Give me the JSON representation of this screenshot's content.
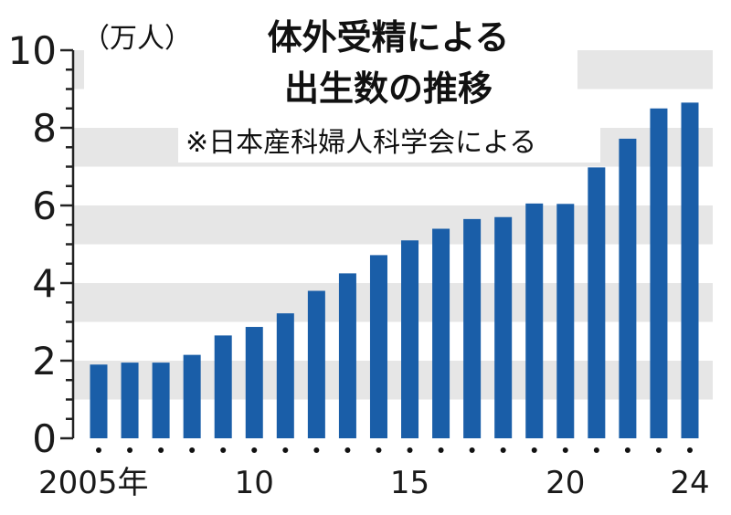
{
  "chart_data": {
    "type": "bar",
    "title": "体外受精による出生数の推移",
    "title_lines": [
      "体外受精による",
      "出生数の推移"
    ],
    "unit_label": "（万人）",
    "note": "※日本産科婦人科学会による",
    "ylim": [
      0,
      10
    ],
    "y_ticks": [
      "0",
      "2",
      "4",
      "6",
      "8",
      "10"
    ],
    "categories": [
      "2005",
      "2006",
      "2007",
      "2008",
      "2009",
      "2010",
      "2011",
      "2012",
      "2013",
      "2014",
      "2015",
      "2016",
      "2017",
      "2018",
      "2019",
      "2020",
      "2021",
      "2022",
      "2023",
      "2024"
    ],
    "values": [
      1.9,
      1.95,
      1.95,
      2.15,
      2.65,
      2.87,
      3.22,
      3.8,
      4.25,
      4.72,
      5.1,
      5.4,
      5.65,
      5.7,
      6.05,
      6.04,
      6.98,
      7.72,
      8.5,
      8.65
    ],
    "x_tick_labels": [
      {
        "category": "2005",
        "text": "2005年"
      },
      {
        "category": "2010",
        "text": "10"
      },
      {
        "category": "2015",
        "text": "15"
      },
      {
        "category": "2020",
        "text": "20"
      },
      {
        "category": "2024",
        "text": "24"
      }
    ],
    "bar_color": "#1a5ea8",
    "band_color": "#e6e6e6",
    "grid": "horizontal bands"
  }
}
